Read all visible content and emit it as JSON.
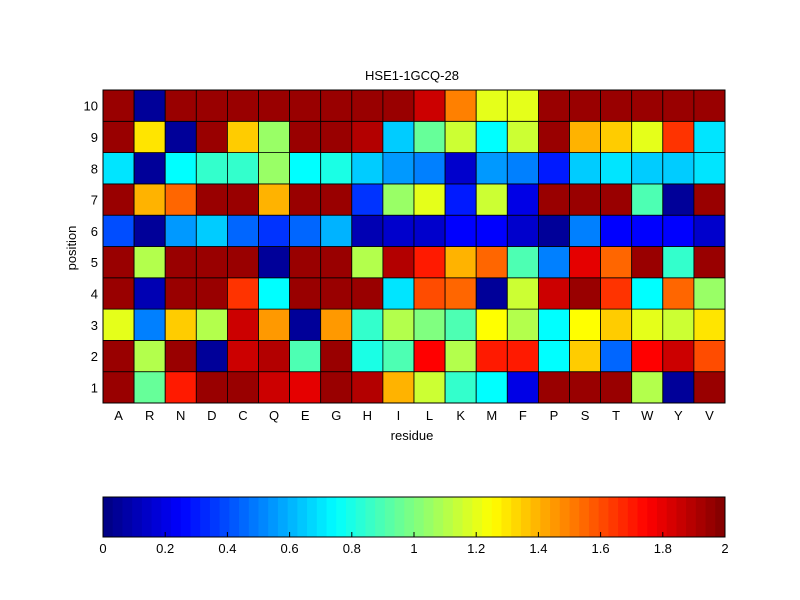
{
  "chart_data": {
    "type": "heatmap",
    "title": "HSE1-1GCQ-28",
    "xlabel": "residue",
    "ylabel": "position",
    "x_categories": [
      "A",
      "R",
      "N",
      "D",
      "C",
      "Q",
      "E",
      "G",
      "H",
      "I",
      "L",
      "K",
      "M",
      "F",
      "P",
      "S",
      "T",
      "W",
      "Y",
      "V"
    ],
    "y_categories": [
      "1",
      "2",
      "3",
      "4",
      "5",
      "6",
      "7",
      "8",
      "9",
      "10"
    ],
    "values": [
      [
        1.95,
        0.95,
        1.7,
        1.95,
        1.95,
        1.85,
        1.8,
        1.95,
        1.9,
        1.4,
        1.15,
        0.85,
        0.75,
        0.2,
        1.95,
        1.95,
        1.95,
        1.1,
        0.05,
        1.95
      ],
      [
        1.95,
        1.1,
        1.95,
        0.05,
        1.85,
        1.9,
        0.9,
        1.95,
        0.8,
        0.9,
        1.75,
        1.1,
        1.7,
        1.7,
        0.75,
        1.35,
        0.45,
        1.75,
        1.85,
        1.6
      ],
      [
        1.2,
        0.5,
        1.35,
        1.1,
        1.85,
        1.45,
        0.05,
        1.45,
        0.85,
        1.1,
        1.0,
        0.9,
        1.25,
        1.1,
        0.75,
        1.25,
        1.35,
        1.2,
        1.15,
        1.3
      ],
      [
        1.95,
        0.1,
        1.95,
        1.95,
        1.65,
        0.75,
        1.95,
        1.95,
        1.95,
        0.7,
        1.6,
        1.55,
        0.05,
        1.15,
        1.85,
        1.95,
        1.65,
        0.75,
        1.55,
        1.05
      ],
      [
        1.95,
        1.1,
        1.95,
        1.95,
        1.95,
        0.05,
        1.95,
        1.95,
        1.1,
        1.9,
        1.7,
        1.4,
        1.55,
        0.9,
        0.5,
        1.8,
        1.55,
        1.95,
        0.85,
        1.95
      ],
      [
        0.4,
        0.05,
        0.55,
        0.65,
        0.45,
        0.35,
        0.45,
        0.6,
        0.1,
        0.15,
        0.15,
        0.25,
        0.25,
        0.15,
        0.05,
        0.5,
        0.25,
        0.25,
        0.25,
        0.15
      ],
      [
        1.95,
        1.4,
        1.55,
        1.95,
        1.95,
        1.4,
        1.95,
        1.95,
        0.35,
        1.05,
        1.2,
        0.3,
        1.15,
        0.2,
        1.95,
        1.95,
        1.95,
        0.9,
        0.05,
        1.95
      ],
      [
        0.7,
        0.05,
        0.75,
        0.85,
        0.85,
        1.05,
        0.75,
        0.8,
        0.65,
        0.55,
        0.5,
        0.15,
        0.55,
        0.5,
        0.3,
        0.65,
        0.7,
        0.65,
        0.65,
        0.7
      ],
      [
        1.95,
        1.3,
        0.05,
        1.95,
        1.35,
        1.05,
        1.95,
        1.95,
        1.9,
        0.65,
        0.95,
        1.15,
        0.75,
        1.15,
        1.95,
        1.4,
        1.35,
        1.2,
        1.65,
        0.7
      ],
      [
        1.95,
        0.05,
        1.95,
        1.95,
        1.95,
        1.95,
        1.95,
        1.95,
        1.95,
        1.95,
        1.85,
        1.5,
        1.2,
        1.2,
        1.95,
        1.95,
        1.95,
        1.95,
        1.95,
        1.95
      ]
    ],
    "colorbar": {
      "colormap": "jet",
      "range": [
        0,
        2
      ],
      "ticks": [
        "0",
        "0.2",
        "0.4",
        "0.6",
        "0.8",
        "1",
        "1.2",
        "1.4",
        "1.6",
        "1.8",
        "2"
      ]
    },
    "grid": false
  }
}
